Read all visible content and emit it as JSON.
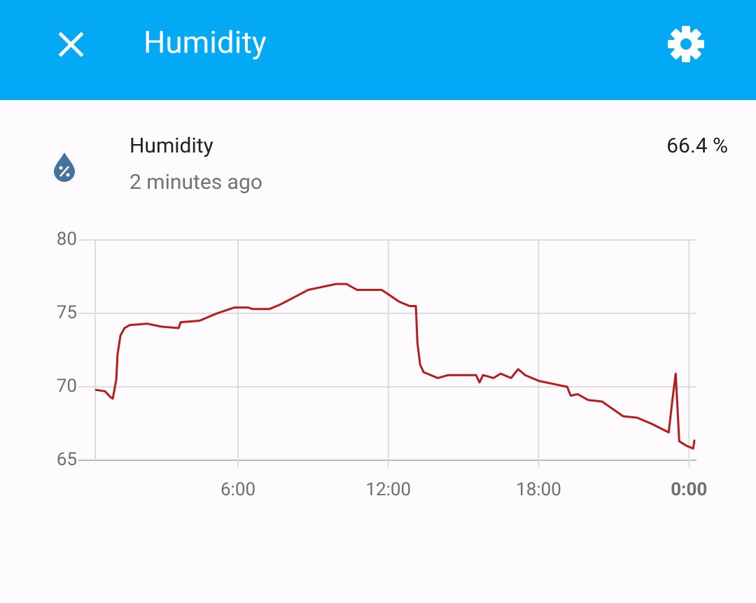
{
  "header": {
    "title": "Humidity"
  },
  "entity": {
    "name": "Humidity",
    "last_changed": "2 minutes ago",
    "state": "66.4 %"
  },
  "chart_data": {
    "type": "line",
    "x": [
      0.3,
      0.69,
      0.91,
      1.0,
      1.14,
      1.19,
      1.31,
      1.47,
      1.67,
      2.37,
      2.93,
      3.63,
      3.71,
      4.46,
      5.16,
      5.86,
      6.42,
      6.56,
      7.26,
      7.68,
      8.24,
      8.8,
      9.36,
      9.91,
      10.33,
      10.75,
      11.31,
      11.73,
      12.0,
      12.43,
      12.85,
      13.1,
      13.16,
      13.27,
      13.41,
      13.97,
      14.39,
      15.5,
      15.64,
      15.78,
      16.2,
      16.48,
      16.9,
      17.18,
      17.46,
      18.02,
      18.58,
      19.14,
      19.28,
      19.56,
      19.98,
      20.53,
      20.95,
      21.37,
      21.93,
      22.49,
      23.19,
      23.33,
      23.47,
      23.61,
      23.89,
      24.17,
      24.22
    ],
    "series": [
      {
        "name": "Humidity",
        "color": "#b71c1c",
        "values": [
          69.8,
          69.7,
          69.3,
          69.2,
          70.5,
          72.2,
          73.5,
          74.0,
          74.2,
          74.3,
          74.1,
          74.0,
          74.4,
          74.5,
          75.0,
          75.4,
          75.4,
          75.3,
          75.3,
          75.6,
          76.1,
          76.6,
          76.8,
          77.0,
          77.0,
          76.6,
          76.6,
          76.6,
          76.3,
          75.8,
          75.5,
          75.5,
          73.0,
          71.5,
          71.0,
          70.6,
          70.8,
          70.8,
          70.3,
          70.8,
          70.6,
          70.9,
          70.6,
          71.2,
          70.8,
          70.4,
          70.2,
          70.0,
          69.4,
          69.5,
          69.1,
          69.0,
          68.5,
          68.0,
          67.9,
          67.5,
          66.9,
          69.0,
          70.9,
          66.3,
          66.0,
          65.8,
          66.4
        ]
      }
    ],
    "xlim": [
      0.3,
      24.3
    ],
    "xticks": [
      {
        "value": 6,
        "label": "6:00"
      },
      {
        "value": 12,
        "label": "12:00"
      },
      {
        "value": 18,
        "label": "18:00"
      },
      {
        "value": 24,
        "label": "0:00"
      }
    ],
    "ylim": [
      65,
      80
    ],
    "yticks": [
      65,
      70,
      75,
      80
    ],
    "grid": true
  }
}
